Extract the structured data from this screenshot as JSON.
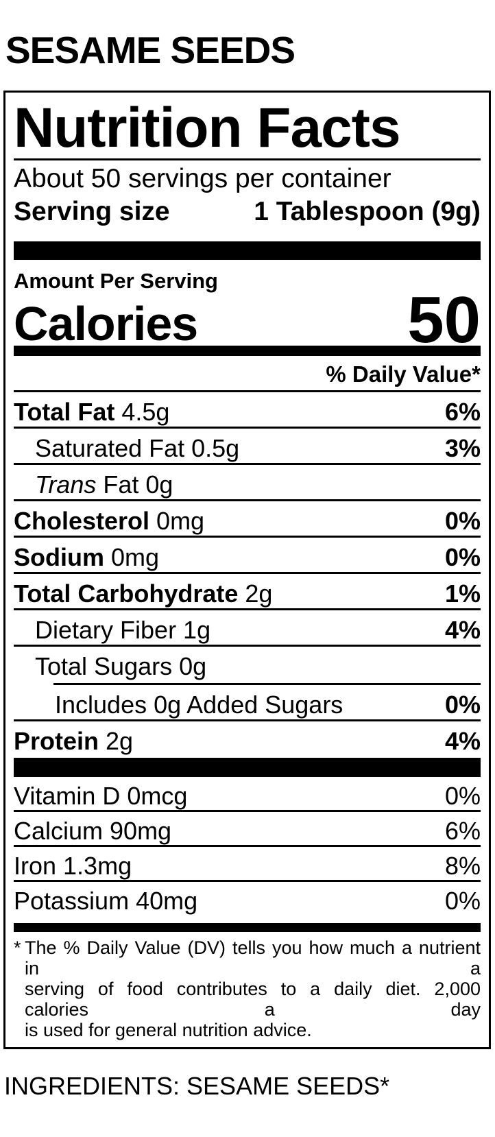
{
  "colors": {
    "text": "#000000",
    "background": "#ffffff"
  },
  "page": {
    "product_title": "SESAME SEEDS",
    "ingredients": "INGREDIENTS: SESAME SEEDS*"
  },
  "label": {
    "title": "Nutrition Facts",
    "servings_per_container": "About 50 servings per container",
    "serving_size_label": "Serving size",
    "serving_size_value": "1 Tablespoon (9g)",
    "amount_per_serving": "Amount Per Serving",
    "calories_label": "Calories",
    "calories_value": "50",
    "daily_value_header": "% Daily Value*",
    "nutrients": [
      {
        "bold": "Total Fat",
        "rest": " 4.5g",
        "pct": "6%"
      },
      {
        "bold": "",
        "rest": "Saturated Fat 0.5g",
        "pct": "3%"
      },
      {
        "italic": "Trans",
        "rest": " Fat 0g",
        "pct": ""
      },
      {
        "bold": "Cholesterol",
        "rest": " 0mg",
        "pct": "0%"
      },
      {
        "bold": "Sodium",
        "rest": " 0mg",
        "pct": "0%"
      },
      {
        "bold": "Total Carbohydrate",
        "rest": " 2g",
        "pct": "1%"
      },
      {
        "bold": "",
        "rest": "Dietary Fiber 1g",
        "pct": "4%"
      },
      {
        "bold": "",
        "rest": "Total Sugars 0g",
        "pct": ""
      },
      {
        "bold": "",
        "rest": "Includes 0g Added Sugars",
        "pct": "0%"
      },
      {
        "bold": "Protein",
        "rest": " 2g",
        "pct": "4%"
      }
    ],
    "vitamins": [
      {
        "name": "Vitamin D 0mcg",
        "pct": "0%"
      },
      {
        "name": "Calcium 90mg",
        "pct": "6%"
      },
      {
        "name": "Iron 1.3mg",
        "pct": "8%"
      },
      {
        "name": "Potassium 40mg",
        "pct": "0%"
      }
    ],
    "footnote": {
      "asterisk": "*",
      "lines": [
        "The % Daily Value (DV) tells you how much a nutrient in a",
        "serving of food contributes to a daily diet. 2,000 calories a day",
        "is used for general nutrition advice."
      ]
    }
  }
}
